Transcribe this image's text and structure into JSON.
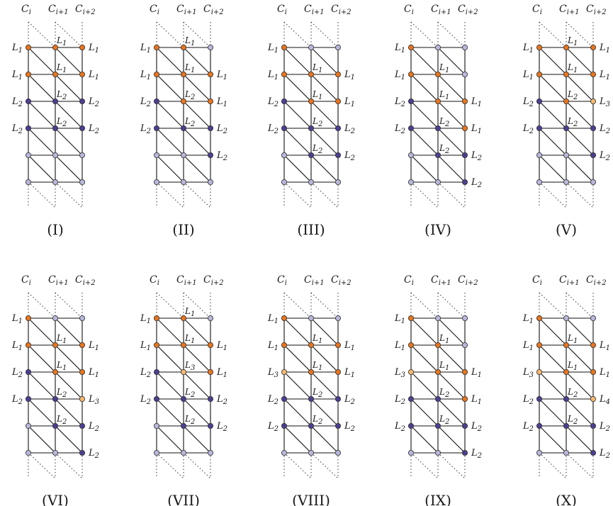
{
  "colors": {
    "orange": "#e8751e",
    "dark": "#4f3d91",
    "light": "#b8b7dc",
    "peach": "#f6b870",
    "line": "#111111",
    "dotted": "#333333"
  },
  "column_headers": [
    {
      "base": "C",
      "sub": "i"
    },
    {
      "base": "C",
      "sub": "i+1"
    },
    {
      "base": "C",
      "sub": "i+2"
    }
  ],
  "panels": [
    {
      "title": "(I)",
      "topDots": 2,
      "nodes": [
        [
          "o",
          "o",
          "o"
        ],
        [
          "o",
          "o",
          "o"
        ],
        [
          "d",
          "d",
          "d"
        ],
        [
          "d",
          "d",
          "d"
        ],
        [
          "l",
          "l",
          "l"
        ],
        [
          "l",
          "l",
          "l"
        ]
      ],
      "left": [
        {
          "r": 0,
          "b": "L",
          "s": "1"
        },
        {
          "r": 1,
          "b": "L",
          "s": "1"
        },
        {
          "r": 2,
          "b": "L",
          "s": "2"
        },
        {
          "r": 3,
          "b": "L",
          "s": "2"
        }
      ],
      "right": [
        {
          "r": 0,
          "b": "L",
          "s": "1"
        },
        {
          "r": 1,
          "b": "L",
          "s": "1"
        },
        {
          "r": 2,
          "b": "L",
          "s": "2"
        },
        {
          "r": 3,
          "b": "L",
          "s": "2"
        }
      ],
      "mid": [
        {
          "r": 0,
          "b": "L",
          "s": "1"
        },
        {
          "r": 1,
          "b": "L",
          "s": "1"
        },
        {
          "r": 2,
          "b": "L",
          "s": "2"
        },
        {
          "r": 3,
          "b": "L",
          "s": "2"
        }
      ]
    },
    {
      "title": "(II)",
      "topDots": 2,
      "nodes": [
        [
          "o",
          "o",
          "l"
        ],
        [
          "o",
          "o",
          "o"
        ],
        [
          "d",
          "o",
          "o"
        ],
        [
          "d",
          "d",
          "d"
        ],
        [
          "l",
          "l",
          "d"
        ],
        [
          "l",
          "l",
          "l"
        ]
      ],
      "left": [
        {
          "r": 0,
          "b": "L",
          "s": "1"
        },
        {
          "r": 1,
          "b": "L",
          "s": "1"
        },
        {
          "r": 2,
          "b": "L",
          "s": "2"
        },
        {
          "r": 3,
          "b": "L",
          "s": "2"
        }
      ],
      "right": [
        {
          "r": 1,
          "b": "L",
          "s": "1"
        },
        {
          "r": 2,
          "b": "L",
          "s": "1"
        },
        {
          "r": 3,
          "b": "L",
          "s": "2"
        },
        {
          "r": 4,
          "b": "L",
          "s": "2"
        }
      ],
      "mid": [
        {
          "r": 0,
          "b": "L",
          "s": "1"
        },
        {
          "r": 1,
          "b": "L",
          "s": "1"
        },
        {
          "r": 2,
          "b": "L",
          "s": "2"
        },
        {
          "r": 3,
          "b": "L",
          "s": "2"
        }
      ]
    },
    {
      "title": "(III)",
      "topDots": 2,
      "nodes": [
        [
          "o",
          "l",
          "l"
        ],
        [
          "o",
          "o",
          "o"
        ],
        [
          "d",
          "o",
          "o"
        ],
        [
          "d",
          "d",
          "d"
        ],
        [
          "l",
          "d",
          "d"
        ],
        [
          "l",
          "l",
          "l"
        ]
      ],
      "left": [
        {
          "r": 0,
          "b": "L",
          "s": "1"
        },
        {
          "r": 1,
          "b": "L",
          "s": "1"
        },
        {
          "r": 2,
          "b": "L",
          "s": "2"
        },
        {
          "r": 3,
          "b": "L",
          "s": "2"
        }
      ],
      "right": [
        {
          "r": 1,
          "b": "L",
          "s": "1"
        },
        {
          "r": 2,
          "b": "L",
          "s": "1"
        },
        {
          "r": 3,
          "b": "L",
          "s": "2"
        },
        {
          "r": 4,
          "b": "L",
          "s": "2"
        }
      ],
      "mid": [
        {
          "r": 1,
          "b": "L",
          "s": "1"
        },
        {
          "r": 2,
          "b": "L",
          "s": "1"
        },
        {
          "r": 3,
          "b": "L",
          "s": "2"
        },
        {
          "r": 4,
          "b": "L",
          "s": "2"
        }
      ]
    },
    {
      "title": "(IV)",
      "topDots": 2,
      "nodes": [
        [
          "o",
          "l",
          "l"
        ],
        [
          "o",
          "o",
          "l"
        ],
        [
          "d",
          "o",
          "o"
        ],
        [
          "d",
          "d",
          "o"
        ],
        [
          "l",
          "d",
          "d"
        ],
        [
          "l",
          "l",
          "d"
        ]
      ],
      "left": [
        {
          "r": 0,
          "b": "L",
          "s": "1"
        },
        {
          "r": 1,
          "b": "L",
          "s": "1"
        },
        {
          "r": 2,
          "b": "L",
          "s": "2"
        },
        {
          "r": 3,
          "b": "L",
          "s": "2"
        }
      ],
      "right": [
        {
          "r": 2,
          "b": "L",
          "s": "1"
        },
        {
          "r": 3,
          "b": "L",
          "s": "1"
        },
        {
          "r": 4,
          "b": "L",
          "s": "2"
        },
        {
          "r": 5,
          "b": "L",
          "s": "2"
        }
      ],
      "mid": [
        {
          "r": 1,
          "b": "L",
          "s": "1"
        },
        {
          "r": 2,
          "b": "L",
          "s": "1"
        },
        {
          "r": 3,
          "b": "L",
          "s": "2"
        },
        {
          "r": 4,
          "b": "L",
          "s": "2"
        }
      ]
    },
    {
      "title": "(V)",
      "topDots": 2,
      "nodes": [
        [
          "o",
          "o",
          "o"
        ],
        [
          "o",
          "o",
          "o"
        ],
        [
          "d",
          "o",
          "p"
        ],
        [
          "d",
          "d",
          "d"
        ],
        [
          "l",
          "l",
          "d"
        ],
        [
          "l",
          "l",
          "l"
        ]
      ],
      "left": [
        {
          "r": 0,
          "b": "L",
          "s": "1"
        },
        {
          "r": 1,
          "b": "L",
          "s": "1"
        },
        {
          "r": 2,
          "b": "L",
          "s": "2"
        },
        {
          "r": 3,
          "b": "L",
          "s": "2"
        }
      ],
      "right": [
        {
          "r": 0,
          "b": "L",
          "s": "1"
        },
        {
          "r": 1,
          "b": "L",
          "s": "1"
        },
        {
          "r": 2,
          "b": "L",
          "s": "3"
        },
        {
          "r": 3,
          "b": "L",
          "s": "2"
        },
        {
          "r": 4,
          "b": "L",
          "s": "2"
        }
      ],
      "mid": [
        {
          "r": 0,
          "b": "L",
          "s": "1"
        },
        {
          "r": 1,
          "b": "L",
          "s": "1"
        },
        {
          "r": 2,
          "b": "L",
          "s": "2"
        },
        {
          "r": 3,
          "b": "L",
          "s": "2"
        }
      ]
    },
    {
      "title": "(VI)",
      "topDots": 2,
      "nodes": [
        [
          "o",
          "l",
          "l"
        ],
        [
          "o",
          "o",
          "o"
        ],
        [
          "d",
          "o",
          "o"
        ],
        [
          "d",
          "d",
          "p"
        ],
        [
          "l",
          "d",
          "d"
        ],
        [
          "l",
          "l",
          "d"
        ]
      ],
      "left": [
        {
          "r": 0,
          "b": "L",
          "s": "1"
        },
        {
          "r": 1,
          "b": "L",
          "s": "1"
        },
        {
          "r": 2,
          "b": "L",
          "s": "2"
        },
        {
          "r": 3,
          "b": "L",
          "s": "2"
        }
      ],
      "right": [
        {
          "r": 1,
          "b": "L",
          "s": "1"
        },
        {
          "r": 2,
          "b": "L",
          "s": "1"
        },
        {
          "r": 3,
          "b": "L",
          "s": "3"
        },
        {
          "r": 4,
          "b": "L",
          "s": "2"
        },
        {
          "r": 5,
          "b": "L",
          "s": "2"
        }
      ],
      "mid": [
        {
          "r": 1,
          "b": "L",
          "s": "1"
        },
        {
          "r": 2,
          "b": "L",
          "s": "1"
        },
        {
          "r": 3,
          "b": "L",
          "s": "2"
        },
        {
          "r": 4,
          "b": "L",
          "s": "2"
        }
      ]
    },
    {
      "title": "(VII)",
      "topDots": 2,
      "nodes": [
        [
          "o",
          "o",
          "l"
        ],
        [
          "o",
          "o",
          "o"
        ],
        [
          "d",
          "p",
          "o"
        ],
        [
          "d",
          "d",
          "d"
        ],
        [
          "l",
          "d",
          "d"
        ],
        [
          "l",
          "l",
          "l"
        ]
      ],
      "left": [
        {
          "r": 0,
          "b": "L",
          "s": "1"
        },
        {
          "r": 1,
          "b": "L",
          "s": "1"
        },
        {
          "r": 2,
          "b": "L",
          "s": "2"
        },
        {
          "r": 3,
          "b": "L",
          "s": "2"
        }
      ],
      "right": [
        {
          "r": 1,
          "b": "L",
          "s": "1"
        },
        {
          "r": 2,
          "b": "L",
          "s": "1"
        },
        {
          "r": 3,
          "b": "L",
          "s": "2"
        },
        {
          "r": 4,
          "b": "L",
          "s": "2"
        }
      ],
      "mid": [
        {
          "r": 0,
          "b": "L",
          "s": "1"
        },
        {
          "r": 1,
          "b": "L",
          "s": "1"
        },
        {
          "r": 2,
          "b": "L",
          "s": "3"
        },
        {
          "r": 3,
          "b": "L",
          "s": "2"
        },
        {
          "r": 4,
          "b": "L",
          "s": "2"
        }
      ]
    },
    {
      "title": "(VIII)",
      "topDots": 2,
      "nodes": [
        [
          "o",
          "l",
          "l"
        ],
        [
          "o",
          "o",
          "o"
        ],
        [
          "p",
          "o",
          "o"
        ],
        [
          "d",
          "d",
          "d"
        ],
        [
          "d",
          "d",
          "d"
        ],
        [
          "l",
          "l",
          "l"
        ]
      ],
      "left": [
        {
          "r": 0,
          "b": "L",
          "s": "1"
        },
        {
          "r": 1,
          "b": "L",
          "s": "1"
        },
        {
          "r": 2,
          "b": "L",
          "s": "3"
        },
        {
          "r": 3,
          "b": "L",
          "s": "2"
        },
        {
          "r": 4,
          "b": "L",
          "s": "2"
        }
      ],
      "right": [
        {
          "r": 1,
          "b": "L",
          "s": "1"
        },
        {
          "r": 2,
          "b": "L",
          "s": "1"
        },
        {
          "r": 3,
          "b": "L",
          "s": "2"
        },
        {
          "r": 4,
          "b": "L",
          "s": "2"
        }
      ],
      "mid": [
        {
          "r": 1,
          "b": "L",
          "s": "1"
        },
        {
          "r": 2,
          "b": "L",
          "s": "1"
        },
        {
          "r": 3,
          "b": "L",
          "s": "2"
        },
        {
          "r": 4,
          "b": "L",
          "s": "2"
        }
      ]
    },
    {
      "title": "(IX)",
      "topDots": 2,
      "nodes": [
        [
          "o",
          "l",
          "l"
        ],
        [
          "o",
          "o",
          "l"
        ],
        [
          "p",
          "o",
          "o"
        ],
        [
          "d",
          "d",
          "o"
        ],
        [
          "d",
          "d",
          "d"
        ],
        [
          "l",
          "l",
          "d"
        ]
      ],
      "left": [
        {
          "r": 0,
          "b": "L",
          "s": "1"
        },
        {
          "r": 1,
          "b": "L",
          "s": "1"
        },
        {
          "r": 2,
          "b": "L",
          "s": "3"
        },
        {
          "r": 3,
          "b": "L",
          "s": "2"
        },
        {
          "r": 4,
          "b": "L",
          "s": "2"
        }
      ],
      "right": [
        {
          "r": 2,
          "b": "L",
          "s": "1"
        },
        {
          "r": 3,
          "b": "L",
          "s": "1"
        },
        {
          "r": 4,
          "b": "L",
          "s": "2"
        },
        {
          "r": 5,
          "b": "L",
          "s": "2"
        }
      ],
      "mid": [
        {
          "r": 1,
          "b": "L",
          "s": "1"
        },
        {
          "r": 2,
          "b": "L",
          "s": "1"
        },
        {
          "r": 3,
          "b": "L",
          "s": "2"
        },
        {
          "r": 4,
          "b": "L",
          "s": "2"
        }
      ]
    },
    {
      "title": "(X)",
      "topDots": 2,
      "nodes": [
        [
          "o",
          "l",
          "l"
        ],
        [
          "o",
          "o",
          "o"
        ],
        [
          "p",
          "o",
          "o"
        ],
        [
          "d",
          "d",
          "p"
        ],
        [
          "d",
          "d",
          "d"
        ],
        [
          "l",
          "l",
          "d"
        ]
      ],
      "left": [
        {
          "r": 0,
          "b": "L",
          "s": "1"
        },
        {
          "r": 1,
          "b": "L",
          "s": "1"
        },
        {
          "r": 2,
          "b": "L",
          "s": "3"
        },
        {
          "r": 3,
          "b": "L",
          "s": "2"
        },
        {
          "r": 4,
          "b": "L",
          "s": "2"
        }
      ],
      "right": [
        {
          "r": 1,
          "b": "L",
          "s": "1"
        },
        {
          "r": 2,
          "b": "L",
          "s": "1"
        },
        {
          "r": 3,
          "b": "L",
          "s": "4"
        },
        {
          "r": 4,
          "b": "L",
          "s": "2"
        },
        {
          "r": 5,
          "b": "L",
          "s": "2"
        }
      ],
      "mid": [
        {
          "r": 1,
          "b": "L",
          "s": "1"
        },
        {
          "r": 2,
          "b": "L",
          "s": "1"
        },
        {
          "r": 3,
          "b": "L",
          "s": "2"
        },
        {
          "r": 4,
          "b": "L",
          "s": "2"
        }
      ]
    }
  ]
}
